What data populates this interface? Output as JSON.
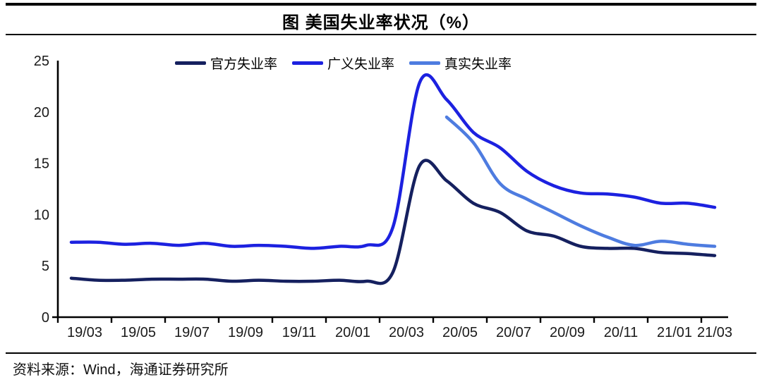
{
  "title": "图 美国失业率状况（%）",
  "source": {
    "text": "资料来源：Wind，海通证券研究所"
  },
  "colors": {
    "official_line": "#15205f",
    "broad_line": "#1c21e0",
    "real_line": "#4e7ce0",
    "axis": "#000000",
    "tick_text": "#1a1a1a"
  },
  "chart_data": {
    "type": "line",
    "smooth": true,
    "grid": false,
    "legend_position": "top",
    "title": "图 美国失业率状况（%）",
    "ylabel": "",
    "xlabel": "",
    "ylim": [
      0,
      25
    ],
    "yticks": [
      0,
      5,
      10,
      15,
      20,
      25
    ],
    "x": [
      "19/03",
      "19/04",
      "19/05",
      "19/06",
      "19/07",
      "19/08",
      "19/09",
      "19/10",
      "19/11",
      "19/12",
      "20/01",
      "20/02",
      "20/03",
      "20/04",
      "20/05",
      "20/06",
      "20/07",
      "20/08",
      "20/09",
      "20/10",
      "20/11",
      "20/12",
      "21/01",
      "21/02",
      "21/03"
    ],
    "x_tick_labels": [
      "19/03",
      "19/05",
      "19/07",
      "19/09",
      "19/11",
      "20/01",
      "20/03",
      "20/05",
      "20/07",
      "20/09",
      "20/11",
      "21/01",
      "21/03"
    ],
    "series": [
      {
        "name": "官方失业率",
        "color": "#15205f",
        "values": [
          3.8,
          3.6,
          3.6,
          3.7,
          3.7,
          3.7,
          3.5,
          3.6,
          3.5,
          3.5,
          3.6,
          3.5,
          4.4,
          14.8,
          13.3,
          11.1,
          10.2,
          8.4,
          7.9,
          6.9,
          6.7,
          6.7,
          6.3,
          6.2,
          6.0
        ]
      },
      {
        "name": "广义失业率",
        "color": "#1c21e0",
        "values": [
          7.3,
          7.3,
          7.1,
          7.2,
          7.0,
          7.2,
          6.9,
          7.0,
          6.9,
          6.7,
          6.9,
          7.0,
          8.8,
          22.9,
          21.2,
          18.0,
          16.5,
          14.2,
          12.8,
          12.1,
          12.0,
          11.7,
          11.1,
          11.1,
          10.7
        ]
      },
      {
        "name": "真实失业率",
        "color": "#4e7ce0",
        "values": [
          null,
          null,
          null,
          null,
          null,
          null,
          null,
          null,
          null,
          null,
          null,
          null,
          null,
          null,
          19.5,
          17.0,
          13.0,
          11.5,
          10.2,
          8.9,
          7.8,
          7.0,
          7.4,
          7.1,
          6.9
        ]
      }
    ]
  }
}
